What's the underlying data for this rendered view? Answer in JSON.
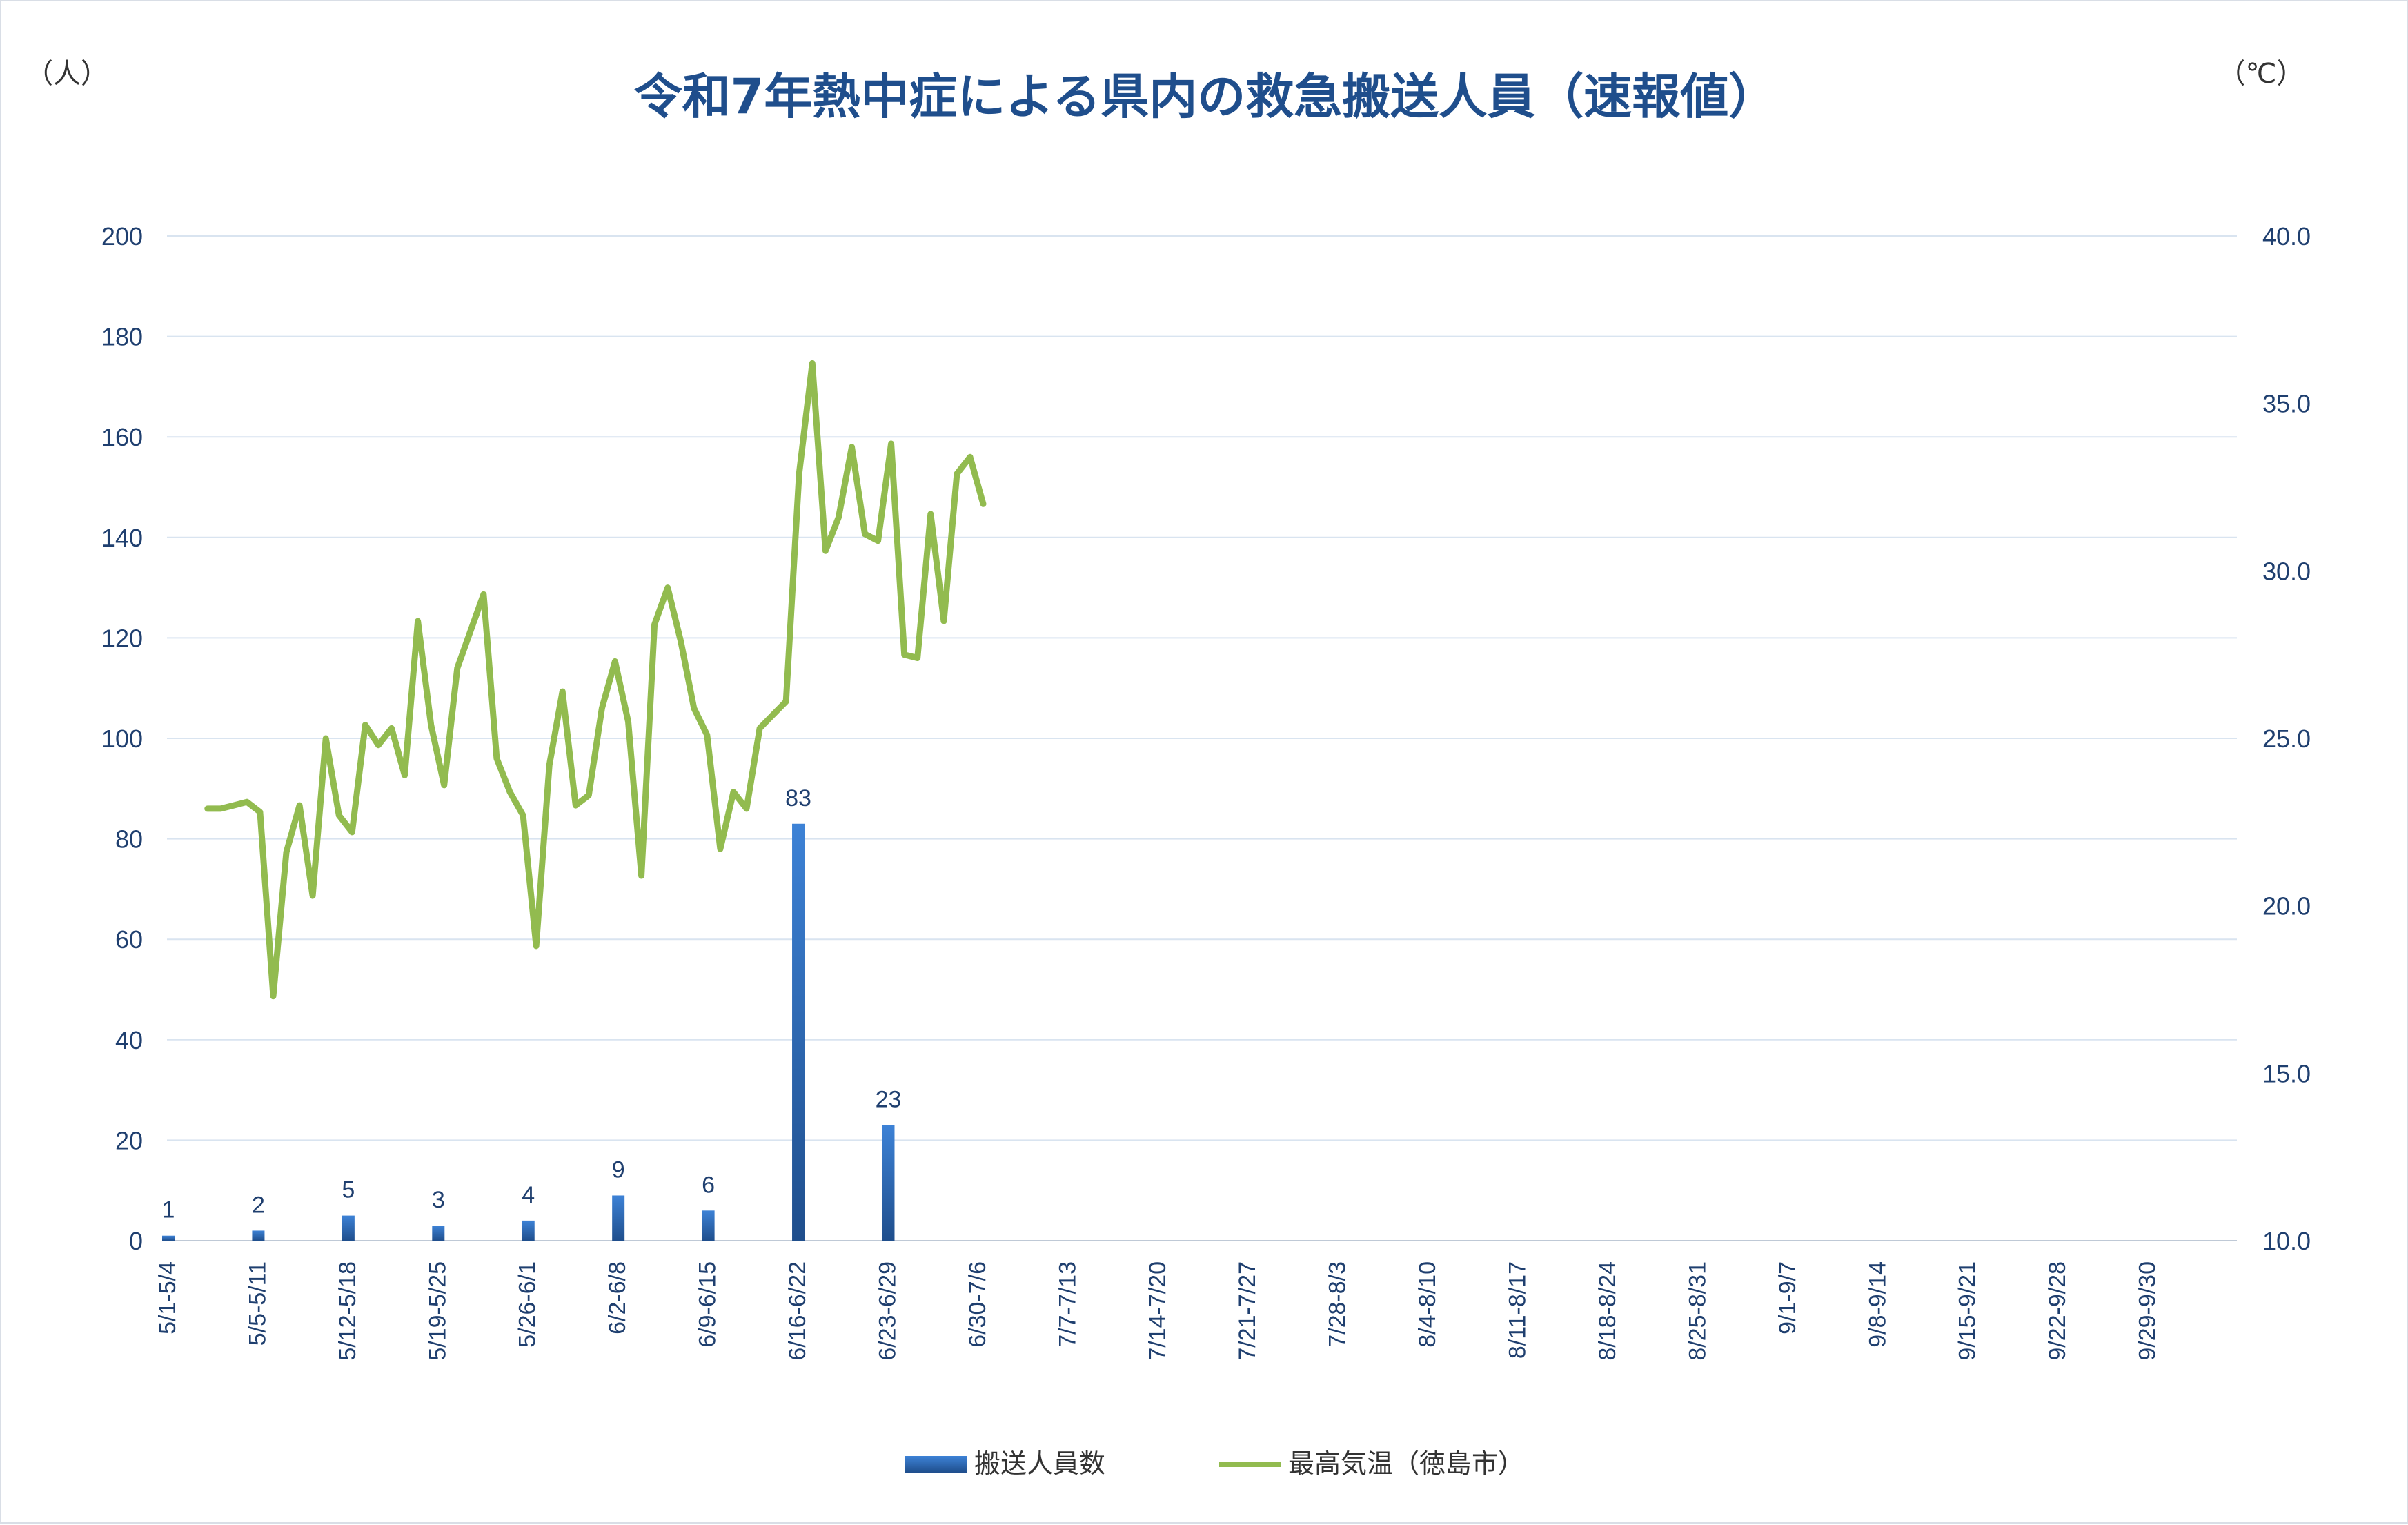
{
  "chart_data": {
    "type": "bar+line",
    "title": "令和7年熱中症による県内の救急搬送人員（速報値）",
    "y_left_unit": "（人）",
    "y_right_unit": "（℃）",
    "y_left_ticks": [
      "0",
      "20",
      "40",
      "60",
      "80",
      "100",
      "120",
      "140",
      "160",
      "180",
      "200"
    ],
    "y_right_ticks": [
      "10.0",
      "15.0",
      "20.0",
      "25.0",
      "30.0",
      "35.0",
      "40.0"
    ],
    "ylim_left": [
      0,
      200
    ],
    "ylim_right": [
      10,
      40
    ],
    "grid": true,
    "legend_position": "bottom",
    "categories": [
      "5/1-5/4",
      "5/5-5/11",
      "5/12-5/18",
      "5/19-5/25",
      "5/26-6/1",
      "6/2-6/8",
      "6/9-6/15",
      "6/16-6/22",
      "6/23-6/29",
      "6/30-7/6",
      "7/7-7/13",
      "7/14-7/20",
      "7/21-7/27",
      "7/28-8/3",
      "8/4-8/10",
      "8/11-8/17",
      "8/18-8/24",
      "8/25-8/31",
      "9/1-9/7",
      "9/8-9/14",
      "9/15-9/21",
      "9/22-9/28",
      "9/29-9/30"
    ],
    "bar_series": {
      "name": "搬送人員数",
      "values": [
        1,
        2,
        5,
        3,
        4,
        9,
        6,
        83,
        23
      ],
      "labels": [
        "1",
        "2",
        "5",
        "3",
        "4",
        "9",
        "6",
        "83",
        "23"
      ]
    },
    "line_series": {
      "name": "最高気温（徳島市）",
      "values": [
        22.9,
        22.9,
        23.0,
        23.1,
        22.8,
        17.3,
        21.6,
        23.0,
        20.3,
        25.0,
        22.7,
        22.2,
        25.4,
        24.8,
        25.3,
        23.9,
        28.5,
        25.4,
        23.6,
        27.1,
        28.2,
        29.3,
        24.4,
        23.4,
        22.7,
        18.8,
        24.2,
        26.4,
        23.0,
        23.3,
        25.9,
        27.3,
        25.5,
        20.9,
        28.4,
        29.5,
        27.9,
        25.9,
        25.1,
        21.7,
        23.4,
        22.9,
        25.3,
        25.7,
        26.1,
        32.9,
        36.2,
        30.6,
        31.6,
        33.7,
        31.1,
        30.9,
        33.8,
        27.5,
        27.4,
        31.7,
        28.5,
        32.9,
        33.4,
        32.0
      ],
      "x_start": 0.45,
      "x_step": 0.1461
    },
    "colors": {
      "bar": "#2e6fbf",
      "bar_dark": "#1f4e8c",
      "line": "#92bb4f",
      "grid": "#d9e4f0",
      "axis_text": "#1f3f6f",
      "title": "#1f4e8c"
    }
  }
}
